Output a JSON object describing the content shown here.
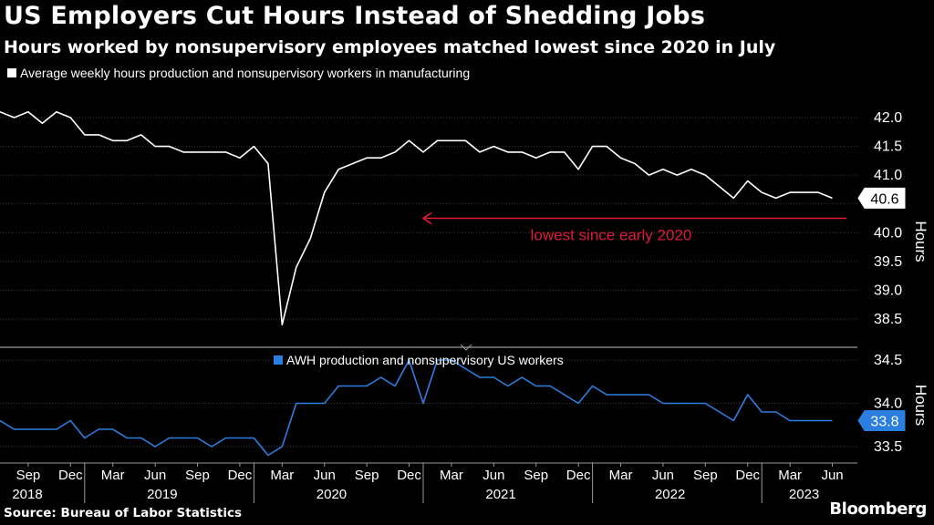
{
  "header": {
    "title": "US Employers Cut Hours Instead of Shedding Jobs",
    "subtitle": "Hours worked by nonsupervisory employees matched lowest since 2020 in July"
  },
  "footer": {
    "source": "Source: Bureau of Labor Statistics",
    "brand": "Bloomberg"
  },
  "colors": {
    "background": "#000000",
    "upper_series": "#ffffff",
    "lower_series": "#2b7fe0",
    "annotation": "#e01a3b",
    "grid": "#3a3a3a"
  },
  "chart_data": [
    {
      "type": "line",
      "panel": "upper",
      "legend": {
        "placement": "top-left"
      },
      "ylabel": "Hours",
      "ylim": [
        38.1,
        42.3
      ],
      "yticks": [
        "42.0",
        "41.5",
        "41.0",
        "40.5",
        "40.0",
        "39.5",
        "39.0",
        "38.5"
      ],
      "grid": true,
      "series": [
        {
          "name": "Average weekly hours production and nonsupervisory workers in manufacturing",
          "start": "2018-07",
          "values": [
            42.1,
            42.0,
            42.1,
            41.9,
            42.1,
            42.0,
            41.7,
            41.7,
            41.6,
            41.6,
            41.7,
            41.5,
            41.5,
            41.4,
            41.4,
            41.4,
            41.4,
            41.3,
            41.5,
            41.2,
            38.4,
            39.4,
            39.9,
            40.7,
            41.1,
            41.2,
            41.3,
            41.3,
            41.4,
            41.6,
            41.4,
            41.6,
            41.6,
            41.6,
            41.4,
            41.5,
            41.4,
            41.4,
            41.3,
            41.4,
            41.4,
            41.1,
            41.5,
            41.5,
            41.3,
            41.2,
            41.0,
            41.1,
            41.0,
            41.1,
            41.0,
            40.8,
            40.6,
            40.9,
            40.7,
            40.6,
            40.7,
            40.7,
            40.7,
            40.6
          ]
        }
      ],
      "last_value_label": "40.6",
      "annotation": {
        "text": "lowest since early 2020",
        "value": 40.25,
        "from": "2021-01",
        "to": "2023-07"
      }
    },
    {
      "type": "line",
      "panel": "lower",
      "legend": {
        "placement": "top-center"
      },
      "ylabel": "Hours",
      "ylim": [
        33.3,
        34.6
      ],
      "yticks": [
        "34.5",
        "34.0",
        "33.5"
      ],
      "grid": true,
      "series": [
        {
          "name": "AWH production and nonsupervisory US workers",
          "start": "2018-07",
          "values": [
            33.8,
            33.7,
            33.7,
            33.7,
            33.7,
            33.8,
            33.6,
            33.7,
            33.7,
            33.6,
            33.6,
            33.5,
            33.6,
            33.6,
            33.6,
            33.5,
            33.6,
            33.6,
            33.6,
            33.4,
            33.5,
            34.0,
            34.0,
            34.0,
            34.2,
            34.2,
            34.2,
            34.3,
            34.2,
            34.5,
            34.0,
            34.5,
            34.5,
            34.4,
            34.3,
            34.3,
            34.2,
            34.3,
            34.2,
            34.2,
            34.1,
            34.0,
            34.2,
            34.1,
            34.1,
            34.1,
            34.1,
            34.0,
            34.0,
            34.0,
            34.0,
            33.9,
            33.8,
            34.1,
            33.9,
            33.9,
            33.8,
            33.8,
            33.8,
            33.8
          ]
        }
      ],
      "last_value_label": "33.8"
    }
  ],
  "x_axis": {
    "start": "2018-07",
    "end": "2023-07",
    "month_ticks": [
      {
        "month": "2018-09",
        "label": "Sep"
      },
      {
        "month": "2018-12",
        "label": "Dec"
      },
      {
        "month": "2019-03",
        "label": "Mar"
      },
      {
        "month": "2019-06",
        "label": "Jun"
      },
      {
        "month": "2019-09",
        "label": "Sep"
      },
      {
        "month": "2019-12",
        "label": "Dec"
      },
      {
        "month": "2020-03",
        "label": "Mar"
      },
      {
        "month": "2020-06",
        "label": "Jun"
      },
      {
        "month": "2020-09",
        "label": "Sep"
      },
      {
        "month": "2020-12",
        "label": "Dec"
      },
      {
        "month": "2021-03",
        "label": "Mar"
      },
      {
        "month": "2021-06",
        "label": "Jun"
      },
      {
        "month": "2021-09",
        "label": "Sep"
      },
      {
        "month": "2021-12",
        "label": "Dec"
      },
      {
        "month": "2022-03",
        "label": "Mar"
      },
      {
        "month": "2022-06",
        "label": "Jun"
      },
      {
        "month": "2022-09",
        "label": "Sep"
      },
      {
        "month": "2022-12",
        "label": "Dec"
      },
      {
        "month": "2023-03",
        "label": "Mar"
      },
      {
        "month": "2023-06",
        "label": "Jun"
      }
    ],
    "year_labels": [
      {
        "year": "2018",
        "label": "2018"
      },
      {
        "year": "2019",
        "label": "2019"
      },
      {
        "year": "2020",
        "label": "2020"
      },
      {
        "year": "2021",
        "label": "2021"
      },
      {
        "year": "2022",
        "label": "2022"
      },
      {
        "year": "2023",
        "label": "2023"
      }
    ]
  }
}
